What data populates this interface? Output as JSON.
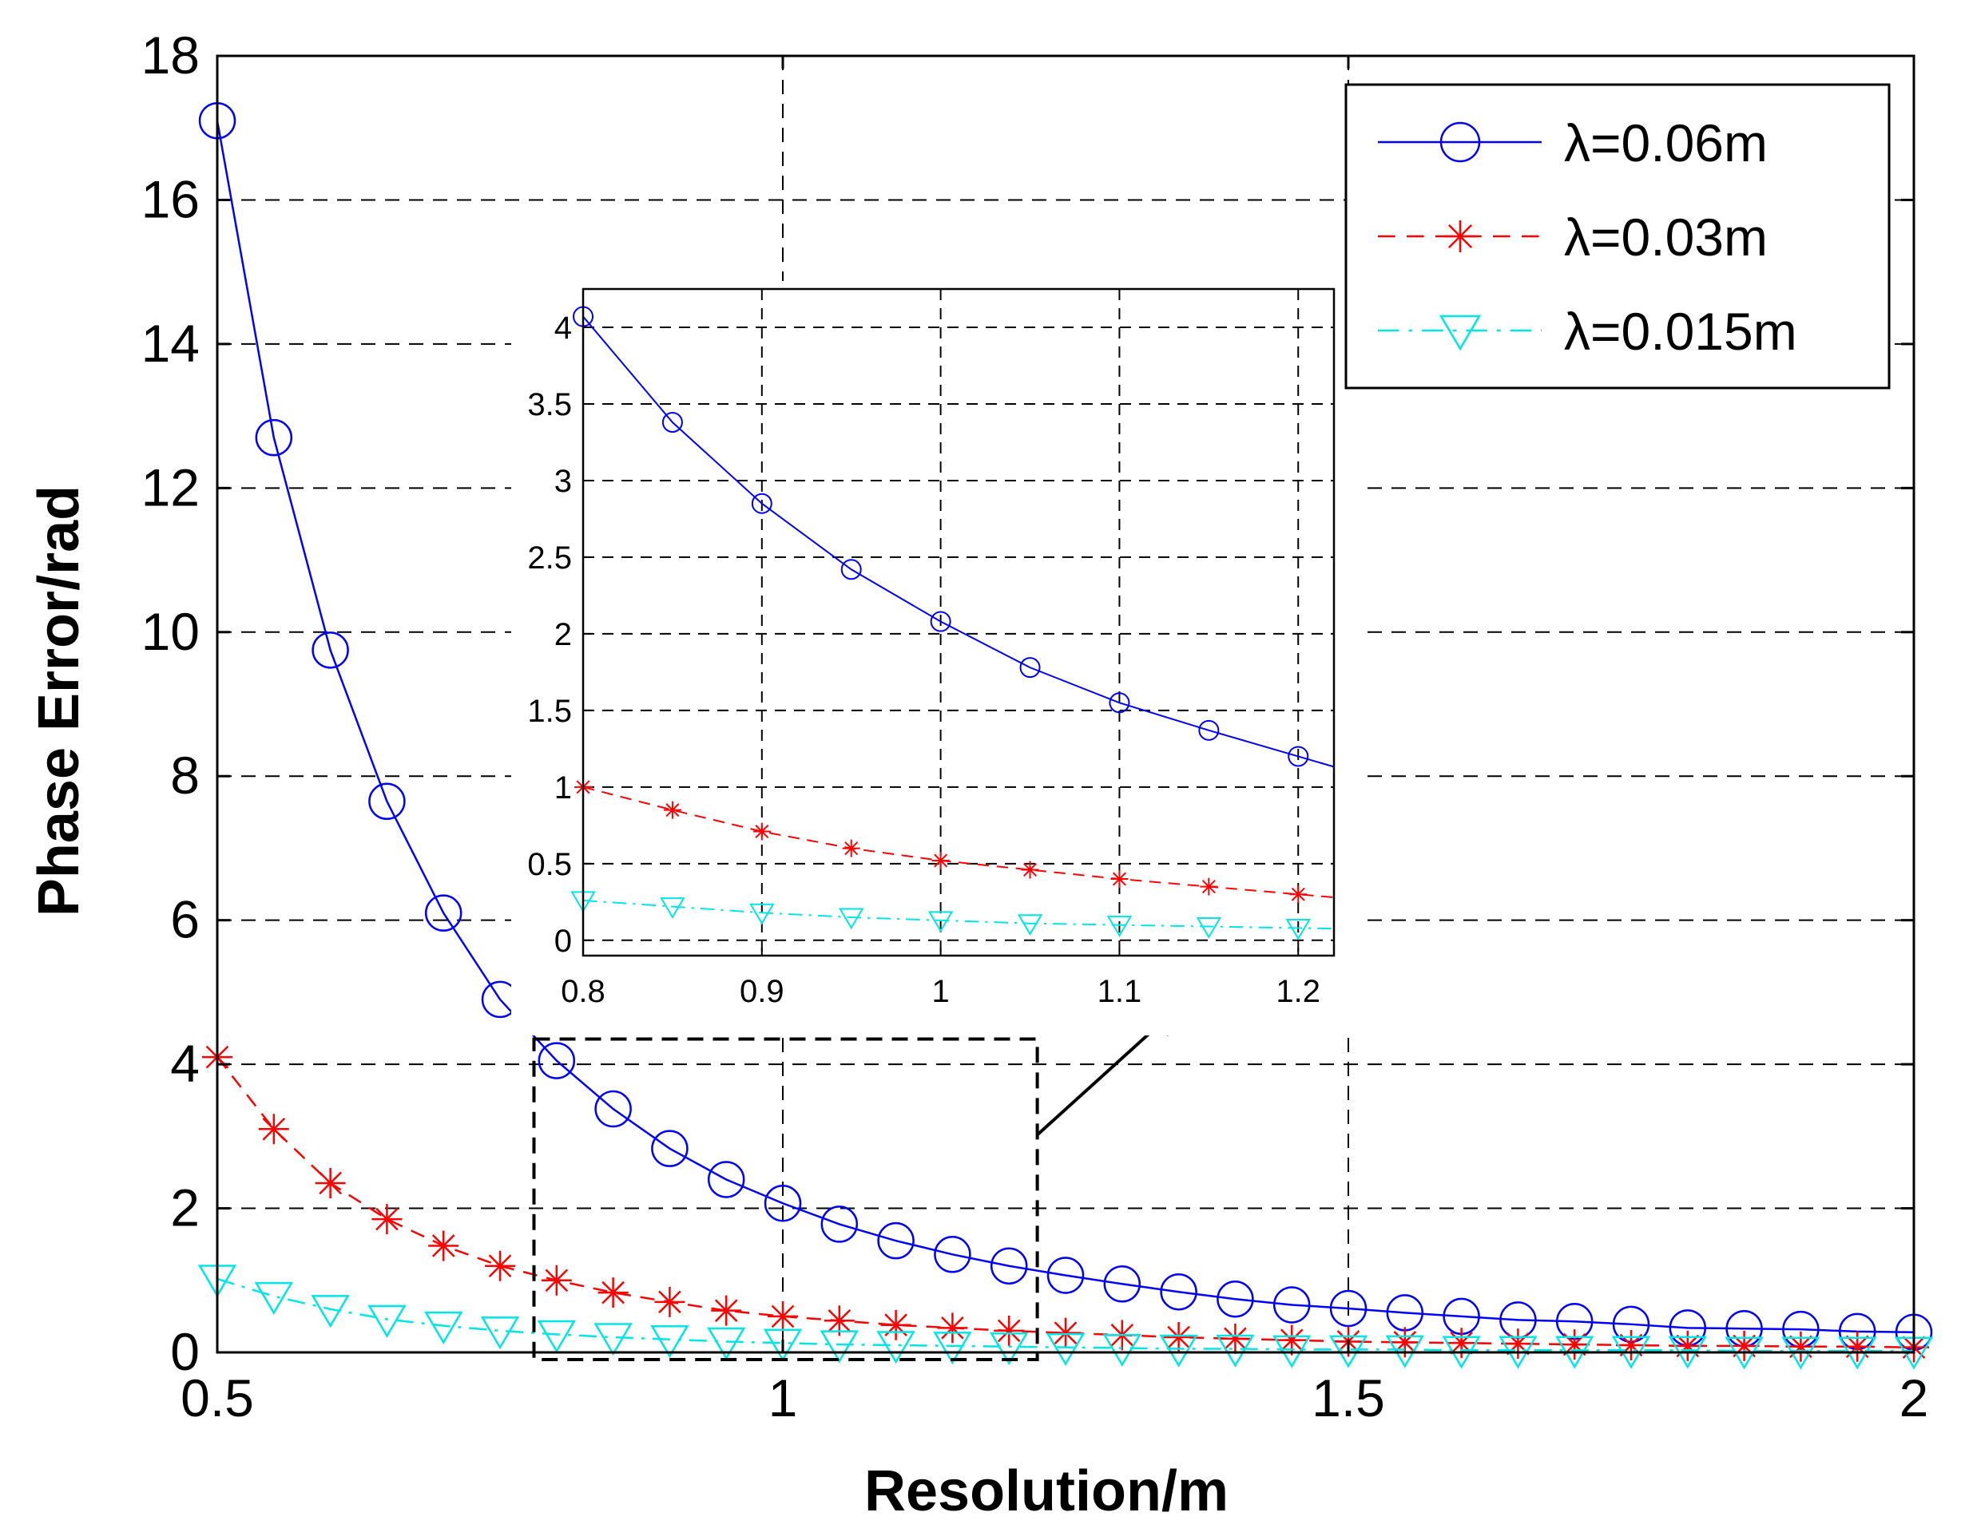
{
  "chart_data": [
    {
      "type": "line",
      "title": "",
      "xlabel": "Resolution/m",
      "ylabel": "Phase Error/rad",
      "xlim": [
        0.5,
        2
      ],
      "ylim": [
        0,
        18
      ],
      "xticks": [
        "0.5",
        "1",
        "1.5",
        "2"
      ],
      "yticks": [
        "0",
        "2",
        "4",
        "6",
        "8",
        "10",
        "12",
        "14",
        "16",
        "18"
      ],
      "grid": true,
      "legend_position": "top-right",
      "series": [
        {
          "name": "λ=0.06m",
          "color": "#0000ff",
          "marker": "circle",
          "line_style": "solid",
          "x": [
            0.5,
            0.55,
            0.6,
            0.65,
            0.7,
            0.75,
            0.8,
            0.85,
            0.9,
            0.95,
            1.0,
            1.05,
            1.1,
            1.15,
            1.2,
            1.25,
            1.3,
            1.35,
            1.4,
            1.45,
            1.5,
            1.55,
            1.6,
            1.65,
            1.7,
            1.75,
            1.8,
            1.85,
            1.9,
            1.95,
            2.0
          ],
          "values": [
            17.1,
            12.7,
            9.75,
            7.65,
            6.1,
            4.9,
            4.05,
            3.38,
            2.83,
            2.4,
            2.07,
            1.78,
            1.55,
            1.36,
            1.2,
            1.07,
            0.95,
            0.84,
            0.74,
            0.66,
            0.61,
            0.55,
            0.5,
            0.45,
            0.43,
            0.39,
            0.34,
            0.33,
            0.32,
            0.29,
            0.28
          ]
        },
        {
          "name": "λ=0.03m",
          "color": "#ff0000",
          "marker": "star",
          "line_style": "dashed",
          "x": [
            0.5,
            0.55,
            0.6,
            0.65,
            0.7,
            0.75,
            0.8,
            0.85,
            0.9,
            0.95,
            1.0,
            1.05,
            1.1,
            1.15,
            1.2,
            1.25,
            1.3,
            1.35,
            1.4,
            1.45,
            1.5,
            1.55,
            1.6,
            1.65,
            1.7,
            1.75,
            1.8,
            1.85,
            1.9,
            1.95,
            2.0
          ],
          "values": [
            4.1,
            3.1,
            2.35,
            1.85,
            1.48,
            1.2,
            1.0,
            0.83,
            0.7,
            0.58,
            0.5,
            0.44,
            0.38,
            0.34,
            0.3,
            0.27,
            0.24,
            0.21,
            0.19,
            0.17,
            0.15,
            0.14,
            0.13,
            0.12,
            0.11,
            0.1,
            0.09,
            0.09,
            0.08,
            0.08,
            0.07
          ]
        },
        {
          "name": "λ=0.015m",
          "color": "#00e5e5",
          "marker": "triangle-down",
          "line_style": "dash-dot",
          "x": [
            0.5,
            0.55,
            0.6,
            0.65,
            0.7,
            0.75,
            0.8,
            0.85,
            0.9,
            0.95,
            1.0,
            1.05,
            1.1,
            1.15,
            1.2,
            1.25,
            1.3,
            1.35,
            1.4,
            1.45,
            1.5,
            1.55,
            1.6,
            1.65,
            1.7,
            1.75,
            1.8,
            1.85,
            1.9,
            1.95,
            2.0
          ],
          "values": [
            1.02,
            0.78,
            0.6,
            0.46,
            0.37,
            0.3,
            0.25,
            0.21,
            0.18,
            0.15,
            0.13,
            0.11,
            0.1,
            0.09,
            0.08,
            0.07,
            0.06,
            0.05,
            0.05,
            0.04,
            0.04,
            0.04,
            0.03,
            0.03,
            0.03,
            0.03,
            0.03,
            0.02,
            0.02,
            0.02,
            0.02
          ]
        }
      ]
    },
    {
      "type": "line",
      "title": "",
      "xlabel": "",
      "ylabel": "",
      "xlim": [
        0.8,
        1.22
      ],
      "ylim": [
        -0.1,
        4.25
      ],
      "xticks": [
        "0.8",
        "0.9",
        "1",
        "1.1",
        "1.2"
      ],
      "yticks": [
        "0",
        "0.5",
        "1",
        "1.5",
        "2",
        "2.5",
        "3",
        "3.5",
        "4"
      ],
      "grid": true,
      "series": [
        {
          "name": "λ=0.06m",
          "color": "#0000ff",
          "marker": "circle",
          "x": [
            0.8,
            0.85,
            0.9,
            0.95,
            1.0,
            1.05,
            1.1,
            1.15,
            1.2
          ],
          "values": [
            4.07,
            3.38,
            2.85,
            2.42,
            2.08,
            1.78,
            1.55,
            1.37,
            1.2
          ]
        },
        {
          "name": "λ=0.03m",
          "color": "#ff0000",
          "marker": "star",
          "x": [
            0.8,
            0.85,
            0.9,
            0.95,
            1.0,
            1.05,
            1.1,
            1.15,
            1.2
          ],
          "values": [
            1.0,
            0.85,
            0.71,
            0.6,
            0.52,
            0.46,
            0.4,
            0.35,
            0.3
          ]
        },
        {
          "name": "λ=0.015m",
          "color": "#00e5e5",
          "marker": "triangle-down",
          "x": [
            0.8,
            0.85,
            0.9,
            0.95,
            1.0,
            1.05,
            1.1,
            1.15,
            1.2
          ],
          "values": [
            0.26,
            0.22,
            0.18,
            0.15,
            0.13,
            0.11,
            0.1,
            0.09,
            0.08
          ]
        }
      ]
    }
  ],
  "legend": {
    "items": [
      {
        "label": "λ=0.06m",
        "color": "#0000ff",
        "marker": "circle"
      },
      {
        "label": "λ=0.03m",
        "color": "#ff0000",
        "marker": "star"
      },
      {
        "label": "λ=0.015m",
        "color": "#00e5e5",
        "marker": "triangle-down"
      }
    ]
  },
  "zoom_box": {
    "x_range": [
      0.78,
      1.225
    ],
    "y_range": [
      -0.1,
      4.35
    ]
  }
}
